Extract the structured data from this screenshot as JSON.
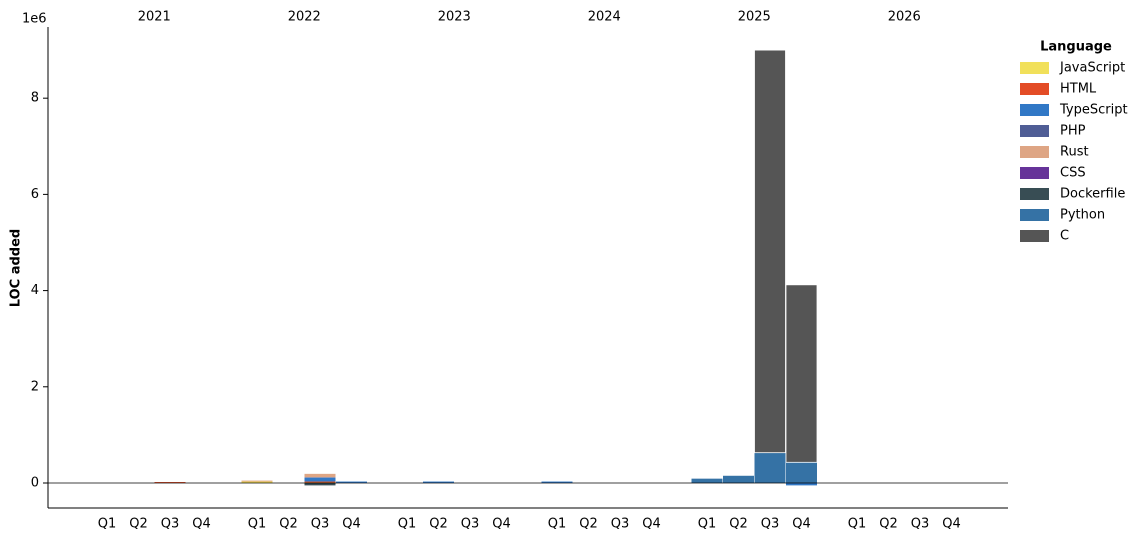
{
  "chart_data": {
    "type": "bar",
    "stacked": true,
    "y_label": "LOC added",
    "y_offset_label": "1e6",
    "legend_title": "Language",
    "legend_position": "outside right",
    "groups": [
      "2021",
      "2022",
      "2023",
      "2024",
      "2025",
      "2026"
    ],
    "categories": [
      "Q1",
      "Q2",
      "Q3",
      "Q4",
      "Q1",
      "Q2",
      "Q3",
      "Q4",
      "Q1",
      "Q2",
      "Q3",
      "Q4",
      "Q1",
      "Q2",
      "Q3",
      "Q4",
      "Q1",
      "Q2",
      "Q3",
      "Q4",
      "Q1",
      "Q2",
      "Q3",
      "Q4"
    ],
    "ylim": [
      -0.52,
      9.48
    ],
    "yticks": [
      0,
      2,
      4,
      6,
      8
    ],
    "series": [
      {
        "name": "JavaScript",
        "color": "#f1e05a",
        "values": [
          0,
          0,
          0,
          0,
          0.03,
          0,
          0.01,
          0,
          0,
          0,
          0,
          0,
          0,
          0,
          0,
          0,
          0,
          0,
          0,
          0,
          0,
          0,
          0,
          0
        ]
      },
      {
        "name": "HTML",
        "color": "#e34c26",
        "values": [
          0,
          0,
          0.02,
          0,
          0,
          0,
          0.02,
          0,
          0,
          0,
          0,
          0,
          0,
          0,
          0,
          0,
          0,
          0,
          0,
          0,
          0,
          0,
          0,
          0
        ]
      },
      {
        "name": "TypeScript",
        "color": "#3178c6",
        "values": [
          0,
          0,
          0,
          0,
          0,
          0,
          0.08,
          0.03,
          0,
          0.03,
          0,
          0,
          0.03,
          0,
          0,
          0,
          0,
          0,
          0,
          -0.05,
          0,
          0,
          0,
          0
        ]
      },
      {
        "name": "PHP",
        "color": "#4F5D95",
        "values": [
          0,
          0,
          0,
          0,
          0,
          0,
          0.01,
          0,
          0,
          0,
          0,
          0,
          0,
          0,
          0,
          0,
          0,
          0,
          0,
          0,
          0,
          0,
          0,
          0
        ]
      },
      {
        "name": "Rust",
        "color": "#dea584",
        "values": [
          0,
          0,
          0,
          0,
          0.02,
          0,
          0.07,
          0,
          0,
          0,
          0,
          0,
          0,
          0,
          0,
          0,
          0,
          0,
          0,
          0,
          0,
          0,
          0,
          0
        ]
      },
      {
        "name": "CSS",
        "color": "#663399",
        "values": [
          0,
          0,
          0,
          0,
          0,
          0,
          0,
          0,
          0,
          0,
          0,
          0,
          0,
          0,
          0,
          0,
          0,
          0,
          0,
          0,
          0,
          0,
          0,
          0
        ]
      },
      {
        "name": "Dockerfile",
        "color": "#384d54",
        "values": [
          0,
          0,
          0,
          0,
          0,
          0,
          -0.05,
          0,
          0,
          0,
          0,
          0,
          0,
          0,
          0,
          0,
          0,
          0,
          0,
          0,
          0,
          0,
          0,
          0
        ]
      },
      {
        "name": "Python",
        "color": "#3572A5",
        "values": [
          0,
          0,
          0,
          0,
          0,
          0,
          0,
          0,
          0,
          0,
          0,
          0,
          0,
          0,
          0,
          0,
          0.09,
          0.15,
          0.63,
          0.43,
          0,
          0,
          0,
          0
        ]
      },
      {
        "name": "C",
        "color": "#555555",
        "values": [
          0,
          0,
          0,
          0,
          0,
          0,
          0,
          0,
          0,
          0,
          0,
          0,
          0,
          0,
          0,
          0,
          0,
          0,
          8.37,
          3.69,
          0,
          0,
          0,
          0
        ]
      }
    ]
  }
}
